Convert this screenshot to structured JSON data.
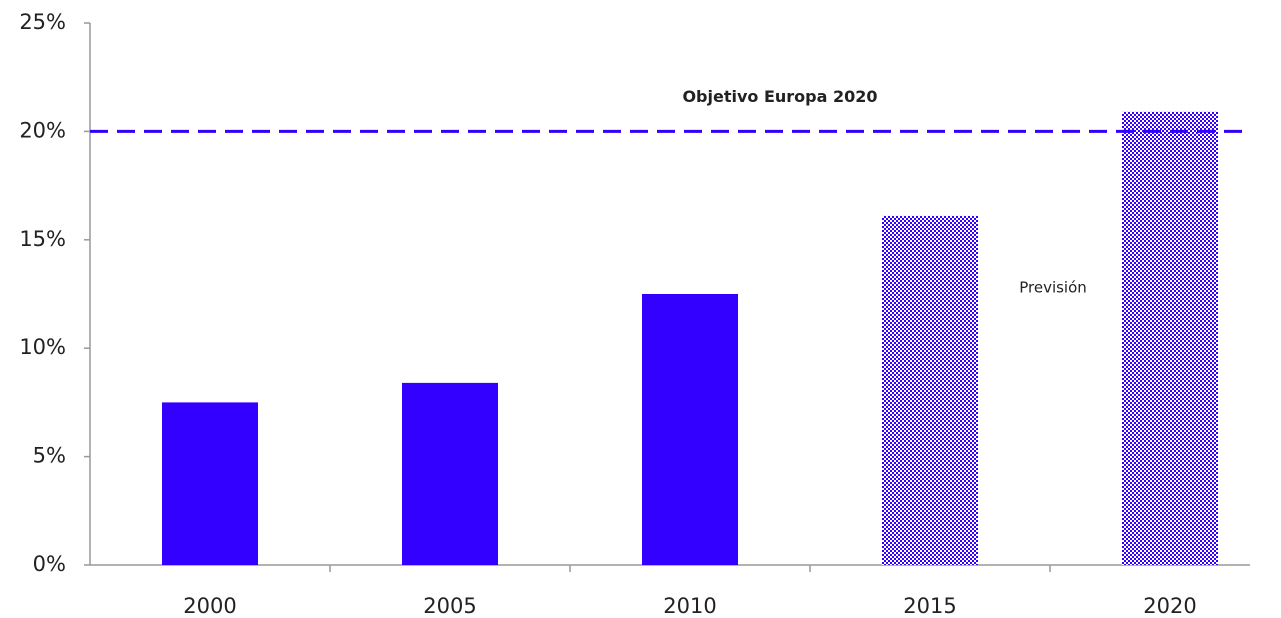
{
  "chart_data": {
    "type": "bar",
    "categories": [
      "2000",
      "2005",
      "2010",
      "2015",
      "2020"
    ],
    "values": [
      7.5,
      8.4,
      12.5,
      16.1,
      20.9
    ],
    "color": "#3300ff",
    "hatched": [
      false,
      false,
      false,
      true,
      true
    ],
    "ylim": [
      0,
      25
    ],
    "yticks": [
      {
        "value": 0,
        "label": "0%"
      },
      {
        "value": 5,
        "label": "5%"
      },
      {
        "value": 10,
        "label": "10%"
      },
      {
        "value": 15,
        "label": "15%"
      },
      {
        "value": 20,
        "label": "20%"
      },
      {
        "value": 25,
        "label": "25%"
      }
    ],
    "reference_line": {
      "value": 20,
      "label": "Objetivo Europa 2020",
      "color": "#3300ff"
    },
    "annotation": "Previsión"
  }
}
